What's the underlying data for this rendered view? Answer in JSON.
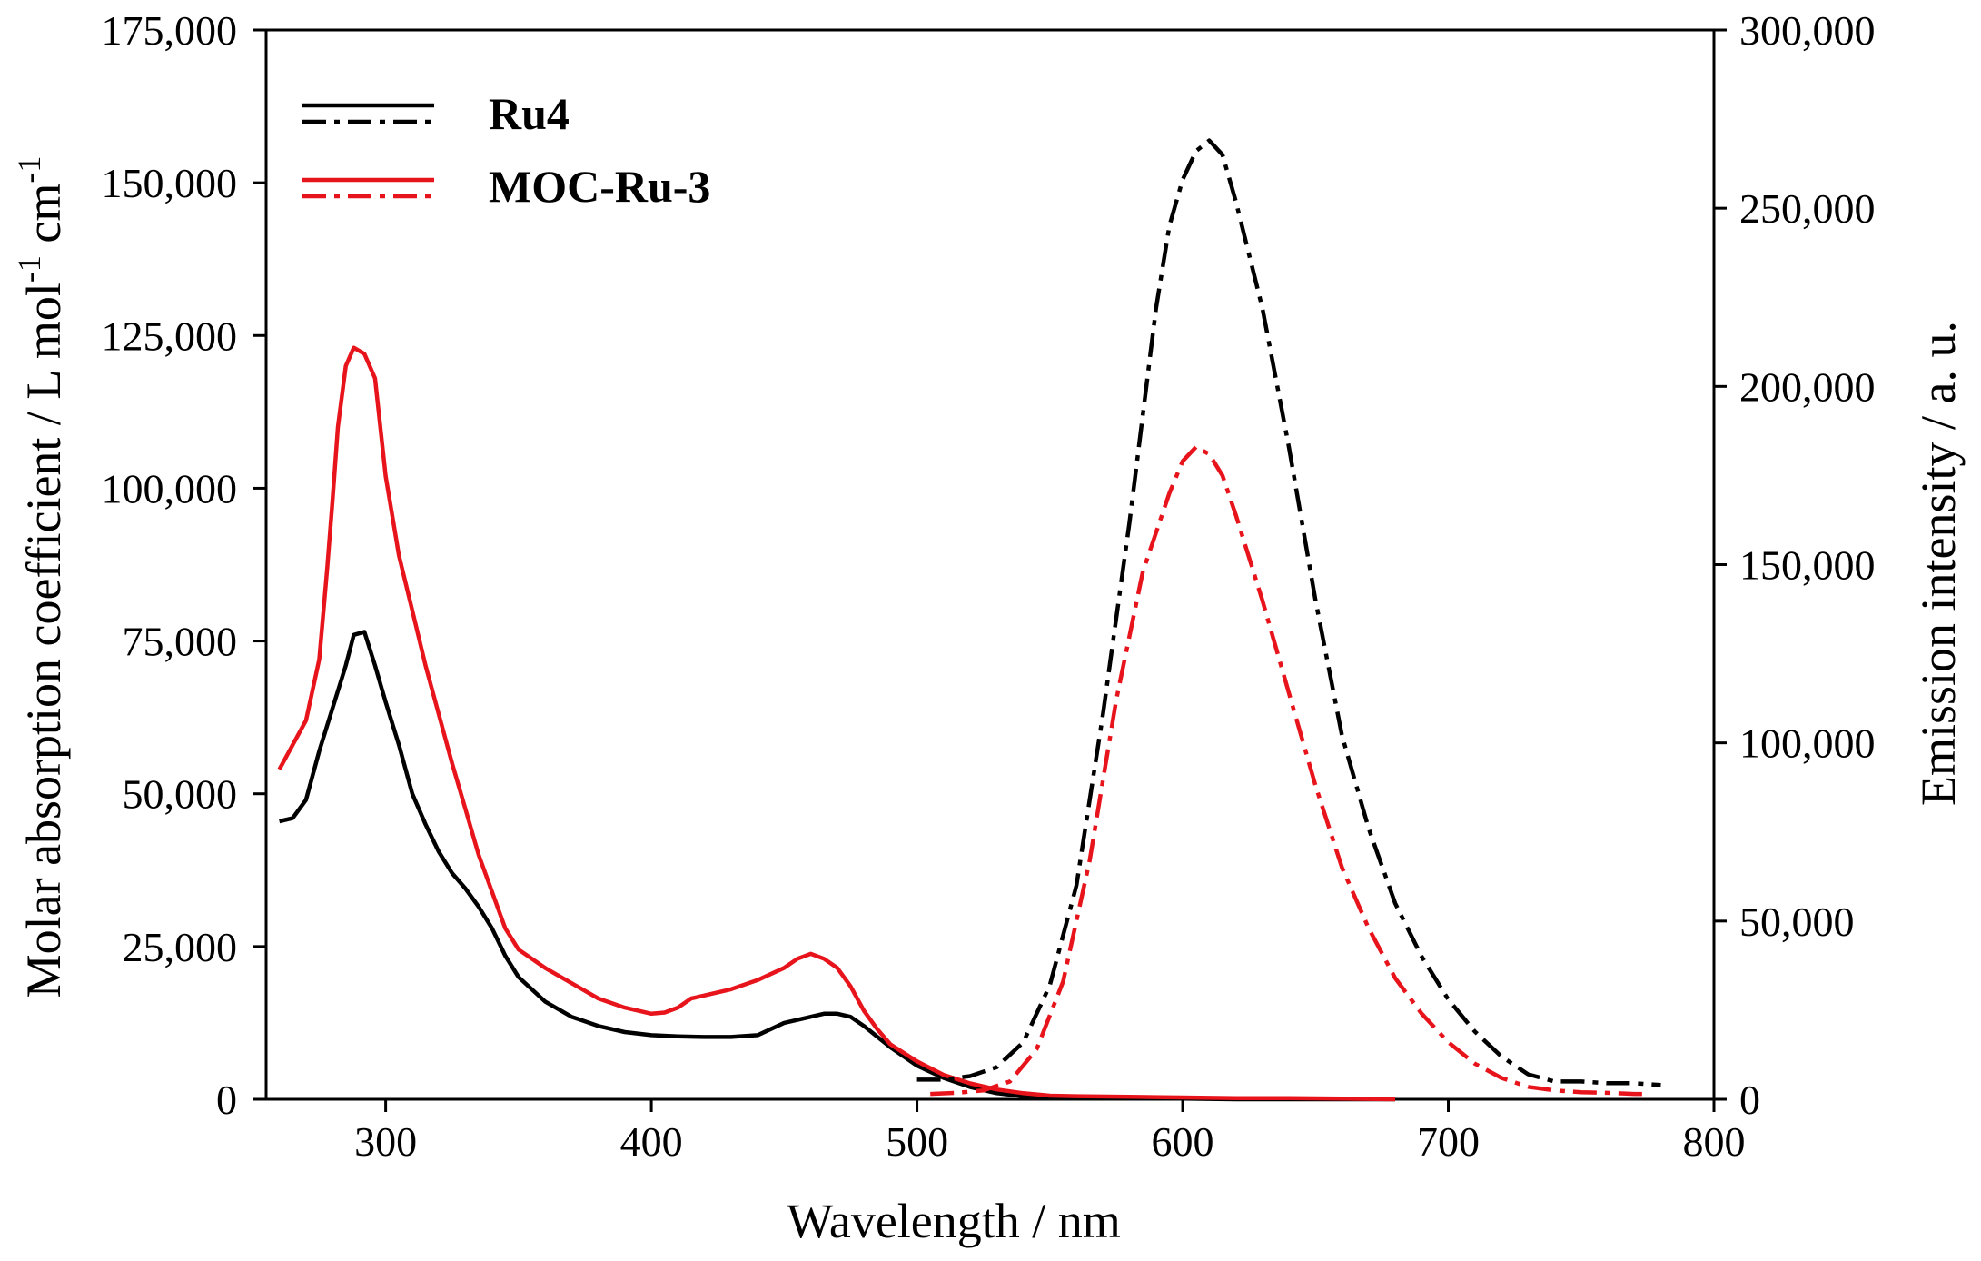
{
  "chart_data": {
    "type": "line",
    "xlabel": "Wavelength / nm",
    "ylabel_left": "Molar absorption coefficient / L mol-1 cm-1",
    "ylabel_left_parts": [
      "Molar absorption coefficient / L mol",
      "-1",
      " cm",
      "-1"
    ],
    "ylabel_right": "Emission intensity / a. u.",
    "xlim": [
      255,
      800
    ],
    "ylim_left": [
      0,
      175000
    ],
    "ylim_right": [
      0,
      300000
    ],
    "x_ticks": [
      300,
      400,
      500,
      600,
      700,
      800
    ],
    "x_tick_labels": [
      "300",
      "400",
      "500",
      "600",
      "700",
      "800"
    ],
    "y_left_ticks": [
      0,
      25000,
      50000,
      75000,
      100000,
      125000,
      150000,
      175000
    ],
    "y_left_tick_labels": [
      "0",
      "25,000",
      "50,000",
      "75,000",
      "100,000",
      "125,000",
      "150,000",
      "175,000"
    ],
    "y_right_ticks": [
      0,
      50000,
      100000,
      150000,
      200000,
      250000,
      300000
    ],
    "y_right_tick_labels": [
      "0",
      "50,000",
      "100,000",
      "150,000",
      "200,000",
      "250,000",
      "300,000"
    ],
    "legend": {
      "position": "top-left",
      "entries": [
        {
          "label": "Ru4",
          "color": "#000000"
        },
        {
          "label": "MOC-Ru-3",
          "color": "#e8141c"
        }
      ]
    },
    "series": [
      {
        "name": "Ru4 absorption",
        "axis": "left",
        "style": "solid",
        "color": "#000000",
        "x": [
          260,
          265,
          270,
          275,
          280,
          285,
          288,
          292,
          296,
          300,
          305,
          310,
          315,
          320,
          325,
          330,
          335,
          340,
          345,
          350,
          360,
          370,
          380,
          390,
          400,
          410,
          420,
          430,
          440,
          445,
          450,
          455,
          460,
          465,
          470,
          475,
          480,
          490,
          500,
          510,
          520,
          530,
          540,
          550,
          560,
          580,
          600,
          620,
          640,
          660,
          680
        ],
        "values": [
          45500,
          46000,
          49000,
          57000,
          64000,
          71000,
          76000,
          76500,
          71000,
          65000,
          58000,
          50000,
          45000,
          40500,
          37000,
          34500,
          31500,
          28000,
          23500,
          20000,
          16000,
          13500,
          12000,
          11000,
          10500,
          10300,
          10200,
          10200,
          10500,
          11500,
          12500,
          13000,
          13500,
          14000,
          14000,
          13500,
          12000,
          8500,
          5500,
          3500,
          2000,
          1000,
          500,
          300,
          200,
          100,
          100,
          0,
          0,
          0,
          0
        ]
      },
      {
        "name": "MOC-Ru-3 absorption",
        "axis": "left",
        "style": "solid",
        "color": "#e8141c",
        "x": [
          260,
          265,
          270,
          275,
          278,
          280,
          282,
          285,
          288,
          292,
          296,
          300,
          305,
          310,
          315,
          320,
          325,
          330,
          335,
          340,
          345,
          350,
          360,
          370,
          380,
          390,
          400,
          405,
          410,
          415,
          420,
          425,
          430,
          440,
          445,
          450,
          455,
          460,
          465,
          470,
          475,
          480,
          485,
          490,
          500,
          510,
          520,
          530,
          540,
          550,
          560,
          580,
          600,
          620,
          640,
          660,
          680
        ],
        "values": [
          54000,
          58000,
          62000,
          72000,
          87000,
          98000,
          110000,
          120000,
          123000,
          122000,
          118000,
          102000,
          89000,
          80000,
          71000,
          63000,
          55000,
          47500,
          40000,
          34000,
          28000,
          24500,
          21500,
          19000,
          16500,
          15000,
          14000,
          14200,
          15000,
          16500,
          17000,
          17500,
          18000,
          19500,
          20500,
          21500,
          23000,
          23800,
          23000,
          21500,
          18500,
          14500,
          11500,
          9000,
          6200,
          4000,
          2600,
          1600,
          1000,
          600,
          500,
          400,
          300,
          200,
          200,
          100,
          0
        ]
      },
      {
        "name": "Ru4 emission",
        "axis": "right",
        "style": "dashdot",
        "color": "#000000",
        "x": [
          500,
          510,
          520,
          530,
          540,
          550,
          560,
          570,
          580,
          590,
          595,
          600,
          605,
          610,
          615,
          620,
          630,
          640,
          650,
          660,
          670,
          680,
          690,
          700,
          710,
          720,
          730,
          740,
          750,
          760,
          770,
          780
        ],
        "values": [
          5500,
          5500,
          6500,
          9000,
          16000,
          32000,
          60000,
          108000,
          162000,
          222000,
          245000,
          258000,
          266000,
          269000,
          265000,
          252000,
          222000,
          183000,
          140000,
          102000,
          76000,
          55000,
          40000,
          28000,
          19000,
          12000,
          7000,
          5000,
          5000,
          4500,
          4500,
          4000
        ]
      },
      {
        "name": "MOC-Ru-3 emission",
        "axis": "right",
        "style": "dashdot",
        "color": "#e8141c",
        "x": [
          505,
          515,
          525,
          535,
          545,
          555,
          565,
          575,
          585,
          595,
          600,
          605,
          610,
          615,
          620,
          630,
          640,
          650,
          660,
          670,
          680,
          690,
          700,
          710,
          720,
          730,
          740,
          750,
          760,
          770,
          775
        ],
        "values": [
          1500,
          1800,
          2500,
          5000,
          14000,
          33000,
          67000,
          112000,
          148000,
          170000,
          179000,
          183000,
          181000,
          175000,
          164000,
          140000,
          114000,
          88000,
          65000,
          48000,
          34000,
          24000,
          16000,
          10000,
          6000,
          3500,
          2500,
          2000,
          1800,
          1500,
          1500
        ]
      }
    ]
  }
}
